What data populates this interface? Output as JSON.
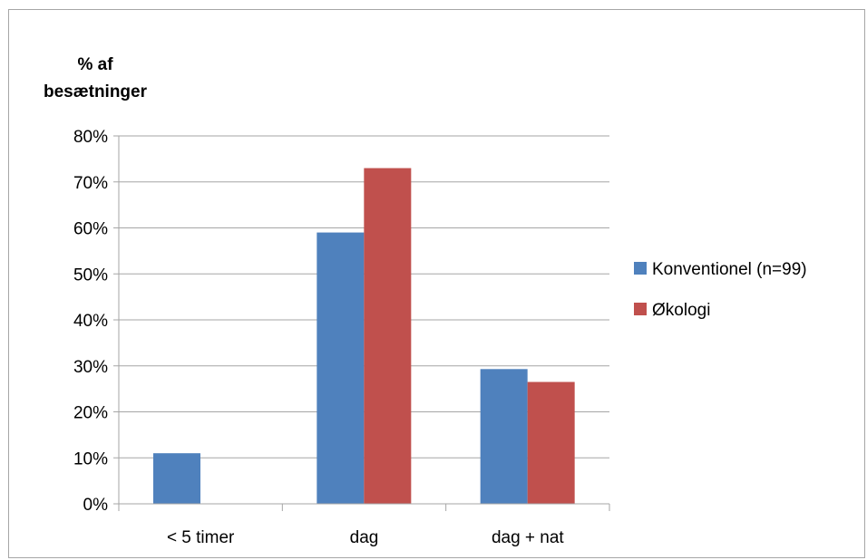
{
  "chart_data": {
    "type": "bar",
    "title": "",
    "ylabel_lines": [
      "% af",
      "besætninger"
    ],
    "xlabel": "",
    "categories": [
      "< 5 timer",
      "dag",
      "dag + nat"
    ],
    "series": [
      {
        "name": "Konventionel (n=99)",
        "values": [
          11,
          59,
          29.3
        ],
        "color": "#4f81bd"
      },
      {
        "name": "Økologi",
        "values": [
          0,
          73,
          26.5
        ],
        "color": "#c0504d"
      }
    ],
    "ylim": [
      0,
      80
    ],
    "yticks": [
      0,
      10,
      20,
      30,
      40,
      50,
      60,
      70,
      80
    ],
    "ytick_labels": [
      "0%",
      "10%",
      "20%",
      "30%",
      "40%",
      "50%",
      "60%",
      "70%",
      "80%"
    ],
    "grid": true,
    "legend_position": "right",
    "colors": {
      "gridline": "#a6a6a6",
      "axis": "#a6a6a6",
      "text": "#000000"
    }
  }
}
